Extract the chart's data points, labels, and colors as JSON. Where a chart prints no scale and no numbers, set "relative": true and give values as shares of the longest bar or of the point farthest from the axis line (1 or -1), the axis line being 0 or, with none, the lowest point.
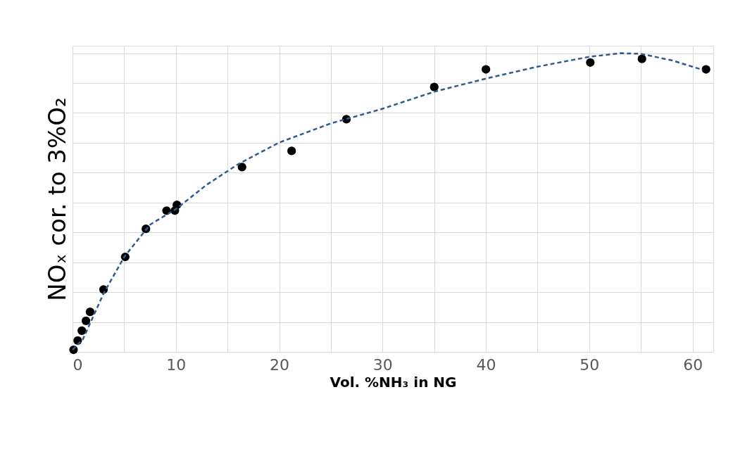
{
  "chart_data": {
    "type": "scatter",
    "relative": true,
    "xlabel": "Vol. %NH₃ in NG",
    "ylabel": "NOₓ cor. to 3%O₂",
    "xlim": [
      0,
      62
    ],
    "xticks": [
      0,
      {
        "value": 5,
        "label": null
      },
      10,
      {
        "value": 15,
        "label": null
      },
      20,
      {
        "value": 25,
        "label": null
      },
      30,
      {
        "value": 35,
        "label": null
      },
      40,
      {
        "value": 45,
        "label": null
      },
      50,
      {
        "value": 55,
        "label": null
      },
      60
    ],
    "grid": true,
    "marker": "circle",
    "series": [
      {
        "color": "#000000",
        "x": [
          0.1,
          0.5,
          0.9,
          1.3,
          1.7,
          3.0,
          5.1,
          7.1,
          9.1,
          9.9,
          10.1,
          16.4,
          21.2,
          26.5,
          35.0,
          40.0,
          50.1,
          55.1,
          61.3
        ],
        "values": [
          0.007,
          0.038,
          0.071,
          0.104,
          0.134,
          0.209,
          0.318,
          0.412,
          0.473,
          0.473,
          0.492,
          0.619,
          0.673,
          0.779,
          0.887,
          0.946,
          0.969,
          0.981,
          0.946
        ]
      },
      {
        "type": "line",
        "color": "#2f5b8e",
        "line_style": "dashed",
        "marker": "none",
        "x": [
          0,
          1,
          3,
          5,
          7.5,
          10,
          13,
          16,
          20,
          25,
          30,
          35,
          40,
          45,
          50,
          53,
          55,
          58,
          61
        ],
        "values": [
          0.007,
          0.042,
          0.195,
          0.318,
          0.426,
          0.478,
          0.56,
          0.628,
          0.701,
          0.765,
          0.814,
          0.871,
          0.915,
          0.955,
          0.988,
          1.0,
          0.998,
          0.976,
          0.944
        ]
      }
    ]
  }
}
